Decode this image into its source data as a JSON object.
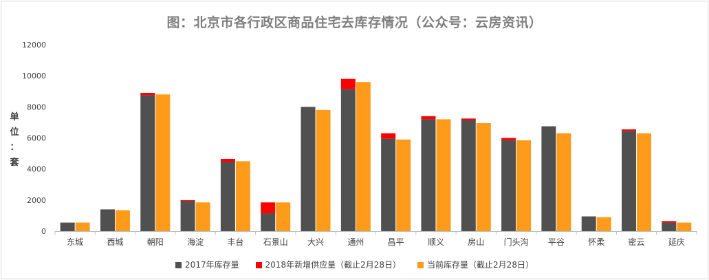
{
  "chart_data": {
    "type": "bar",
    "title": "图：北京市各行政区商品住宅去库存情况（公众号：云房资讯）",
    "ylabel": "单位：套",
    "ylim": [
      0,
      12000
    ],
    "yticks": [
      0,
      2000,
      4000,
      6000,
      8000,
      10000,
      12000
    ],
    "grid": false,
    "legend_position": "bottom",
    "categories": [
      "东城",
      "西城",
      "朝阳",
      "海淀",
      "丰台",
      "石景山",
      "大兴",
      "通州",
      "昌平",
      "顺义",
      "房山",
      "门头沟",
      "平谷",
      "怀柔",
      "密云",
      "延庆"
    ],
    "series": [
      {
        "name": "2017年库存量",
        "color": "#505050",
        "stack": "a",
        "values": [
          550,
          1400,
          8750,
          1950,
          4450,
          1150,
          8000,
          9150,
          5950,
          7200,
          7150,
          5850,
          6750,
          950,
          6450,
          550
        ]
      },
      {
        "name": "2018年新增供应量（截止2月28日）",
        "color": "#ff0000",
        "stack": "a",
        "values": [
          0,
          0,
          150,
          50,
          200,
          700,
          0,
          650,
          350,
          200,
          100,
          150,
          0,
          0,
          100,
          100
        ]
      },
      {
        "name": "当前库存量（截止2月28日）",
        "color": "#ff9b1a",
        "stack": "b",
        "values": [
          550,
          1350,
          8800,
          1850,
          4500,
          1850,
          7800,
          9600,
          5900,
          7200,
          6950,
          5850,
          6300,
          900,
          6300,
          550
        ]
      }
    ]
  }
}
